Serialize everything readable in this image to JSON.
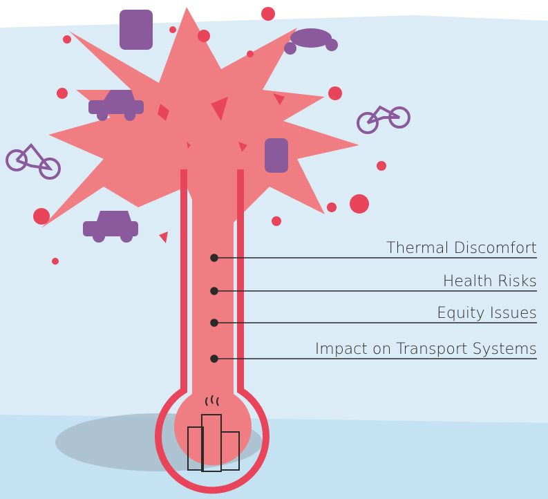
{
  "labels": [
    "Thermal Discomfort",
    "Health Risks",
    "Equity Issues",
    "Impact on Transport Systems"
  ]
}
